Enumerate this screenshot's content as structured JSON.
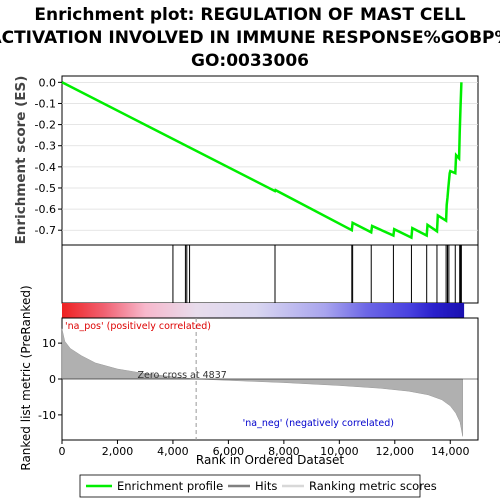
{
  "chart_data": {
    "type": "line",
    "title_lines": [
      "Enrichment plot: REGULATION OF MAST CELL",
      "ACTIVATION INVOLVED IN IMMUNE RESPONSE%GOBP%",
      "GO:0033006"
    ],
    "es_panel": {
      "ylabel": "Enrichment score (ES)",
      "ylim": [
        -0.77,
        0.03
      ],
      "yticks": [
        0.0,
        -0.1,
        -0.2,
        -0.3,
        -0.4,
        -0.5,
        -0.6,
        -0.7
      ],
      "ytick_labels": [
        "0.0",
        "-0.1",
        "-0.2",
        "-0.3",
        "-0.4",
        "-0.5",
        "-0.6",
        "-0.7"
      ],
      "series_name": "Enrichment profile",
      "color": "#00ee00",
      "points": [
        [
          0,
          0.0
        ],
        [
          7680,
          -0.515
        ],
        [
          7700,
          -0.51
        ],
        [
          10450,
          -0.7
        ],
        [
          10480,
          -0.665
        ],
        [
          11150,
          -0.71
        ],
        [
          11180,
          -0.68
        ],
        [
          11950,
          -0.725
        ],
        [
          11980,
          -0.695
        ],
        [
          12600,
          -0.735
        ],
        [
          12630,
          -0.69
        ],
        [
          13150,
          -0.725
        ],
        [
          13180,
          -0.675
        ],
        [
          13520,
          -0.705
        ],
        [
          13550,
          -0.63
        ],
        [
          13850,
          -0.655
        ],
        [
          13870,
          -0.58
        ],
        [
          13900,
          -0.545
        ],
        [
          13930,
          -0.5
        ],
        [
          13950,
          -0.47
        ],
        [
          13980,
          -0.43
        ],
        [
          14000,
          -0.42
        ],
        [
          14180,
          -0.43
        ],
        [
          14210,
          -0.345
        ],
        [
          14320,
          -0.36
        ],
        [
          14340,
          -0.24
        ],
        [
          14370,
          -0.12
        ],
        [
          14400,
          0.0
        ]
      ]
    },
    "hits": {
      "series_name": "Hits",
      "ranks": [
        4000,
        4450,
        4500,
        4600,
        7680,
        10450,
        10480,
        11150,
        11950,
        12600,
        13150,
        13520,
        13850,
        13900,
        13950,
        14180,
        14340,
        14370,
        14400
      ]
    },
    "color_bar": {
      "stops": [
        [
          0,
          "#ee2222"
        ],
        [
          1500,
          "#f06070"
        ],
        [
          3000,
          "#f7b8cc"
        ],
        [
          4837,
          "#e8dcec"
        ],
        [
          7000,
          "#d9d6f0"
        ],
        [
          9500,
          "#a8a4ee"
        ],
        [
          11000,
          "#6c66e6"
        ],
        [
          12500,
          "#4a42e0"
        ],
        [
          13400,
          "#2a20cc"
        ],
        [
          14500,
          "#1a10b0"
        ]
      ],
      "pos_label": "'na_pos' (positively correlated)",
      "neg_label": "'na_neg' (negatively correlated)",
      "pos_color": "#dd0000",
      "neg_color": "#0000cc"
    },
    "metric_panel": {
      "ylabel": "Ranked list metric (PreRanked)",
      "ylim": [
        -17,
        17
      ],
      "yticks": [
        10,
        0,
        -10
      ],
      "ytick_labels": [
        "10",
        "0",
        "-10"
      ],
      "series_name": "Ranking metric scores",
      "fill_color": "#b0b0b0",
      "profile": [
        [
          0,
          14
        ],
        [
          100,
          10.5
        ],
        [
          300,
          8.5
        ],
        [
          700,
          6.5
        ],
        [
          1200,
          4.5
        ],
        [
          2000,
          2.8
        ],
        [
          3000,
          1.5
        ],
        [
          4000,
          0.6
        ],
        [
          4837,
          0.0
        ],
        [
          6000,
          -0.4
        ],
        [
          8000,
          -1.0
        ],
        [
          10000,
          -1.8
        ],
        [
          11500,
          -2.6
        ],
        [
          12500,
          -3.4
        ],
        [
          13200,
          -4.4
        ],
        [
          13700,
          -5.8
        ],
        [
          14000,
          -7.5
        ],
        [
          14200,
          -9.5
        ],
        [
          14350,
          -12
        ],
        [
          14450,
          -16
        ]
      ],
      "zero_cross_label": "Zero cross at 4837",
      "zero_cross_rank": 4837
    },
    "x_axis": {
      "xlabel": "Rank in Ordered Dataset",
      "xlim": [
        0,
        15000
      ],
      "ticks": [
        0,
        2000,
        4000,
        6000,
        8000,
        10000,
        12000,
        14000
      ],
      "tick_labels": [
        "0",
        "2,000",
        "4,000",
        "6,000",
        "8,000",
        "10,000",
        "12,000",
        "14,000"
      ],
      "max_rank": 14500
    },
    "legend": {
      "items": [
        {
          "label": "Enrichment profile",
          "color": "#00ee00"
        },
        {
          "label": "Hits",
          "color": "#808080"
        },
        {
          "label": "Ranking metric scores",
          "color": "#d8d8d8"
        }
      ],
      "placement": "bottom"
    }
  }
}
